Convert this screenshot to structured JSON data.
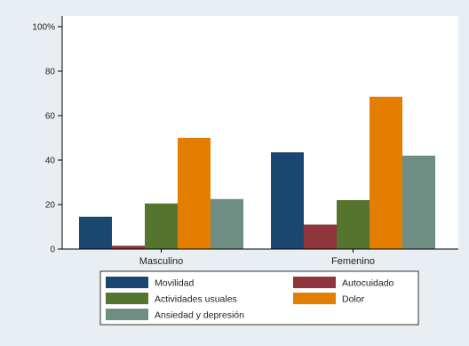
{
  "chart_data": {
    "type": "bar",
    "categories": [
      "Masculino",
      "Femenino"
    ],
    "series": [
      {
        "name": "Movilidad",
        "values": [
          14.5,
          43.5
        ],
        "color": "#1a476f"
      },
      {
        "name": "Autocuidado",
        "values": [
          1.5,
          11.0
        ],
        "color": "#90353b"
      },
      {
        "name": "Actividades usuales",
        "values": [
          20.5,
          22.0
        ],
        "color": "#55752f"
      },
      {
        "name": "Dolor",
        "values": [
          50.0,
          68.5
        ],
        "color": "#e37e00"
      },
      {
        "name": "Ansiedad y depresión",
        "values": [
          22.5,
          42.0
        ],
        "color": "#6e8e84"
      }
    ],
    "yticks": [
      0,
      20,
      40,
      60,
      80,
      100
    ],
    "ytick_labels": [
      "0",
      "20",
      "40",
      "60",
      "80",
      "100%"
    ],
    "ylim": [
      0,
      100
    ],
    "grid": false,
    "legend_position": "bottom",
    "title": "",
    "xlabel": "",
    "ylabel": ""
  }
}
